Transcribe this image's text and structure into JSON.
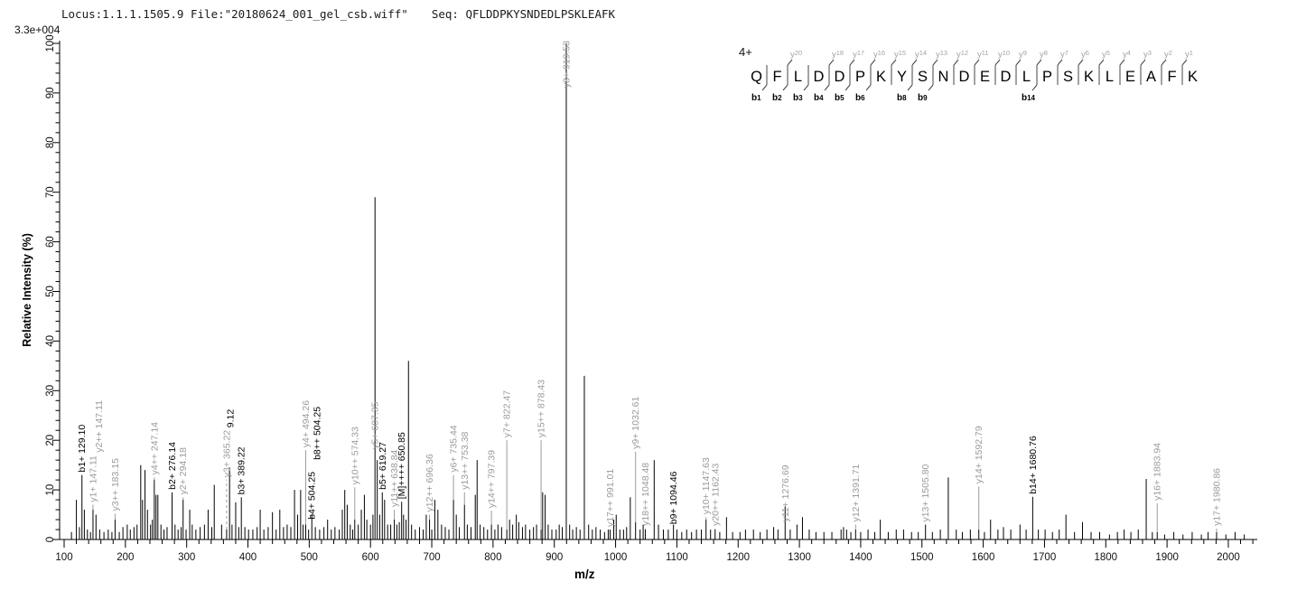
{
  "header": {
    "locus": "Locus:1.1.1.1505.9",
    "file": "File:\"20180624_001_gel_csb.wiff\"",
    "seq": "Seq: QFLDDPKYSNDEDLPSKLEAFK"
  },
  "axes": {
    "y_scale_note": "3.3e+004",
    "ylabel": "Relative  Intensity (%)",
    "xlabel": "m/z",
    "xlim": [
      100,
      2050
    ],
    "ylim": [
      0,
      100
    ],
    "x_major_ticks": [
      100,
      200,
      300,
      400,
      500,
      600,
      700,
      800,
      900,
      1000,
      1100,
      1200,
      1300,
      1400,
      1500,
      1600,
      1700,
      1800,
      1900,
      2000
    ],
    "x_minor_step": 20,
    "y_major_step": 10,
    "y_minor_step": 2
  },
  "peptide": {
    "charge_label": "4+",
    "sequence": "QFLDDPKYSNDEDLPSKLEAFK",
    "boundaries": [
      {
        "i": 1,
        "b": "1"
      },
      {
        "i": 2,
        "y": "20",
        "b": "2"
      },
      {
        "i": 3,
        "b": "3"
      },
      {
        "i": 4,
        "y": "18",
        "b": "4"
      },
      {
        "i": 5,
        "y": "17",
        "b": "5"
      },
      {
        "i": 6,
        "y": "16",
        "b": "6"
      },
      {
        "i": 7,
        "y": "15"
      },
      {
        "i": 8,
        "y": "14",
        "b": "8"
      },
      {
        "i": 9,
        "y": "13",
        "b": "9"
      },
      {
        "i": 10,
        "y": "12"
      },
      {
        "i": 11,
        "y": "11"
      },
      {
        "i": 12,
        "y": "10"
      },
      {
        "i": 13,
        "y": "9"
      },
      {
        "i": 14,
        "y": "8",
        "b": "14"
      },
      {
        "i": 15,
        "y": "7"
      },
      {
        "i": 16,
        "y": "6"
      },
      {
        "i": 17,
        "y": "5"
      },
      {
        "i": 18,
        "y": "4"
      },
      {
        "i": 19,
        "y": "3"
      },
      {
        "i": 20,
        "y": "2"
      },
      {
        "i": 21,
        "y": "1"
      }
    ]
  },
  "colors": {
    "peak": "#000000",
    "b_ion": "#000000",
    "y_ion": "#9b9b9b",
    "diagram_y": "#a3a3a3",
    "axis": "#000000"
  },
  "chart_data": {
    "type": "bar",
    "subtype": "ms2-fragmentation-spectrum",
    "xlabel": "m/z",
    "ylabel": "Relative  Intensity (%)",
    "xlim": [
      100,
      2050
    ],
    "ylim": [
      0,
      100
    ],
    "intensity_scale": "3.3e+004",
    "annotated_peaks": [
      {
        "label": "b1+ 129.10",
        "mz": 129.1,
        "intensity": 12,
        "ion": "b",
        "label_from": 13
      },
      {
        "label": "y1+ 147.11",
        "mz": 147.11,
        "intensity": 6,
        "ion": "y",
        "label_from": 7
      },
      {
        "label": "y2++ 147.11",
        "mz": 156.5,
        "intensity": 0,
        "ion": "y",
        "label_from": 17,
        "float": true
      },
      {
        "label": "y3++ 183.15",
        "mz": 183.15,
        "intensity": 4,
        "ion": "y",
        "label_from": 5.2
      },
      {
        "label": "y4++ 247.14",
        "mz": 247.14,
        "intensity": 12,
        "ion": "y",
        "label_from": 12.5
      },
      {
        "label": "b2+ 276.14",
        "mz": 276.14,
        "intensity": 9,
        "ion": "b",
        "label_from": 9.5
      },
      {
        "label": "y2+ 294.18",
        "mz": 294.18,
        "intensity": 8,
        "ion": "y",
        "label_from": 8.5
      },
      {
        "label": "9.12",
        "mz": 371.5,
        "intensity": 0,
        "ion": "b",
        "label_from": 22,
        "float": true
      },
      {
        "label": "y3+ 365.22",
        "mz": 365.22,
        "intensity": 2,
        "ion": "y",
        "label_from": 12,
        "dashed": true
      },
      {
        "label": "b3+ 389.22",
        "mz": 389.22,
        "intensity": 8,
        "ion": "b",
        "label_from": 8.5
      },
      {
        "label": "y4+ 494.26",
        "mz": 494.26,
        "intensity": 3,
        "ion": "y",
        "label_from": 18
      },
      {
        "label": "b4+ 504.25",
        "mz": 504.25,
        "intensity": 5,
        "ion": "b",
        "label_from": 3.5
      },
      {
        "label": "b8++ 504.25",
        "mz": 513,
        "intensity": 0,
        "ion": "b",
        "label_from": 15.5,
        "float": true
      },
      {
        "label": "y10++ 574.33",
        "mz": 574.33,
        "intensity": 4,
        "ion": "y",
        "label_from": 10.5
      },
      {
        "label": "y5+ 607.35",
        "mz": 607.35,
        "intensity": 69,
        "ion": "y",
        "label_from": 17.7
      },
      {
        "label": "b5+ 619.27",
        "mz": 619.27,
        "intensity": 8,
        "ion": "b",
        "label_from": 9.5
      },
      {
        "label": "y11++ 638.84",
        "mz": 638.84,
        "intensity": 4,
        "ion": "y",
        "label_from": 6
      },
      {
        "label": "[M]++++ 650.85",
        "mz": 650.85,
        "intensity": 6,
        "ion": "b",
        "label_from": 7.6
      },
      {
        "label": "y12++ 696.36",
        "mz": 696.36,
        "intensity": 4,
        "ion": "y",
        "label_from": 5
      },
      {
        "label": "y6+ 735.44",
        "mz": 735.44,
        "intensity": 8,
        "ion": "y",
        "label_from": 13
      },
      {
        "label": "y13++ 753.38",
        "mz": 753.38,
        "intensity": 7,
        "ion": "y",
        "label_from": 9.5
      },
      {
        "label": "y14++ 797.39",
        "mz": 797.39,
        "intensity": 3,
        "ion": "y",
        "label_from": 5.8
      },
      {
        "label": "y7+ 822.47",
        "mz": 822.47,
        "intensity": 2,
        "ion": "y",
        "label_from": 20
      },
      {
        "label": "y15++ 878.43",
        "mz": 878.43,
        "intensity": 2,
        "ion": "y",
        "label_from": 20
      },
      {
        "label": "y8+ 919.53",
        "mz": 919.53,
        "intensity": 100,
        "ion": "y",
        "label_from": 90.5
      },
      {
        "label": "y17++ 991.01",
        "mz": 991.01,
        "intensity": 2,
        "ion": "y",
        "label_from": 2
      },
      {
        "label": "y9+ 1032.61",
        "mz": 1032.61,
        "intensity": 3.5,
        "ion": "y",
        "label_from": 17.7
      },
      {
        "label": "y18++ 1048.48",
        "mz": 1048.48,
        "intensity": 2,
        "ion": "y",
        "label_from": 2.2
      },
      {
        "label": "b9+ 1094.46",
        "mz": 1094.46,
        "intensity": 3,
        "ion": "b",
        "label_from": 2.5
      },
      {
        "label": "y10+ 1147.63",
        "mz": 1147.63,
        "intensity": 4,
        "ion": "y",
        "label_from": 4.5
      },
      {
        "label": "y20++ 1162.43",
        "mz": 1162.43,
        "intensity": 2,
        "ion": "y",
        "label_from": 2.2
      },
      {
        "label": "y11+ 1276.69",
        "mz": 1276.69,
        "intensity": 6.7,
        "ion": "y",
        "label_from": 3
      },
      {
        "label": "y12+ 1391.71",
        "mz": 1391.71,
        "intensity": 2,
        "ion": "y",
        "label_from": 3
      },
      {
        "label": "y13+ 1505.80",
        "mz": 1505.8,
        "intensity": 3,
        "ion": "y",
        "label_from": 3
      },
      {
        "label": "y14+ 1592.79",
        "mz": 1592.79,
        "intensity": 2,
        "ion": "y",
        "label_from": 10.7
      },
      {
        "label": "b14+ 1680.76",
        "mz": 1680.76,
        "intensity": 8,
        "ion": "b",
        "label_from": 8.6
      },
      {
        "label": "y16+ 1883.94",
        "mz": 1883.94,
        "intensity": 1.5,
        "ion": "y",
        "label_from": 7.3
      },
      {
        "label": "y17+ 1980.86",
        "mz": 1980.86,
        "intensity": 1.5,
        "ion": "y",
        "label_from": 2.2
      }
    ],
    "background_peaks": [
      [
        112,
        1.5
      ],
      [
        120,
        8
      ],
      [
        125,
        2.5
      ],
      [
        133,
        6
      ],
      [
        138,
        2
      ],
      [
        143,
        1.5
      ],
      [
        152,
        5
      ],
      [
        158,
        2
      ],
      [
        165,
        1.5
      ],
      [
        172,
        2
      ],
      [
        178,
        1.5
      ],
      [
        190,
        1.5
      ],
      [
        196,
        2.5
      ],
      [
        203,
        3
      ],
      [
        208,
        2
      ],
      [
        214,
        2.5
      ],
      [
        219,
        3
      ],
      [
        225,
        15
      ],
      [
        228,
        8
      ],
      [
        232,
        14
      ],
      [
        236,
        6
      ],
      [
        241,
        3
      ],
      [
        244,
        4
      ],
      [
        250,
        9
      ],
      [
        253,
        9
      ],
      [
        258,
        3
      ],
      [
        263,
        2
      ],
      [
        268,
        2.5
      ],
      [
        281,
        3
      ],
      [
        286,
        2
      ],
      [
        291,
        2.5
      ],
      [
        299,
        2
      ],
      [
        305,
        6
      ],
      [
        309,
        3
      ],
      [
        315,
        2
      ],
      [
        322,
        2.5
      ],
      [
        329,
        3
      ],
      [
        335,
        6
      ],
      [
        341,
        2.5
      ],
      [
        345,
        11
      ],
      [
        357,
        3
      ],
      [
        370,
        14.5
      ],
      [
        374,
        3
      ],
      [
        380,
        7.5
      ],
      [
        385,
        2.5
      ],
      [
        395,
        2.5
      ],
      [
        401,
        2
      ],
      [
        408,
        2
      ],
      [
        415,
        2.5
      ],
      [
        420,
        6
      ],
      [
        426,
        2
      ],
      [
        433,
        2.5
      ],
      [
        440,
        5.5
      ],
      [
        446,
        2
      ],
      [
        452,
        6
      ],
      [
        458,
        2.5
      ],
      [
        464,
        3
      ],
      [
        470,
        2.5
      ],
      [
        476,
        10
      ],
      [
        481,
        5
      ],
      [
        486,
        10
      ],
      [
        490,
        3
      ],
      [
        499,
        2
      ],
      [
        510,
        2.5
      ],
      [
        517,
        2
      ],
      [
        524,
        2.5
      ],
      [
        530,
        4
      ],
      [
        536,
        2
      ],
      [
        542,
        2.5
      ],
      [
        549,
        2
      ],
      [
        554,
        6
      ],
      [
        558,
        10
      ],
      [
        562,
        7
      ],
      [
        567,
        3
      ],
      [
        571,
        2
      ],
      [
        580,
        3
      ],
      [
        585,
        6
      ],
      [
        590,
        9
      ],
      [
        594,
        4
      ],
      [
        600,
        3
      ],
      [
        604,
        5
      ],
      [
        611,
        16
      ],
      [
        615,
        5
      ],
      [
        623,
        8
      ],
      [
        628,
        3
      ],
      [
        633,
        3
      ],
      [
        643,
        3
      ],
      [
        647,
        3.5
      ],
      [
        654,
        5
      ],
      [
        658,
        4
      ],
      [
        662,
        36
      ],
      [
        667,
        3
      ],
      [
        673,
        2
      ],
      [
        680,
        2.5
      ],
      [
        686,
        2
      ],
      [
        691,
        5
      ],
      [
        700,
        2
      ],
      [
        705,
        8
      ],
      [
        710,
        6
      ],
      [
        716,
        3
      ],
      [
        722,
        2.5
      ],
      [
        728,
        2
      ],
      [
        740,
        5
      ],
      [
        745,
        2.5
      ],
      [
        758,
        3
      ],
      [
        764,
        2.5
      ],
      [
        771,
        9
      ],
      [
        774,
        16
      ],
      [
        779,
        3
      ],
      [
        785,
        2.5
      ],
      [
        791,
        2
      ],
      [
        803,
        2
      ],
      [
        808,
        3
      ],
      [
        814,
        2.5
      ],
      [
        827,
        4
      ],
      [
        832,
        3
      ],
      [
        838,
        5
      ],
      [
        842,
        3.5
      ],
      [
        848,
        2.5
      ],
      [
        853,
        3
      ],
      [
        860,
        2
      ],
      [
        866,
        2.5
      ],
      [
        871,
        3
      ],
      [
        881,
        9.5
      ],
      [
        885,
        9
      ],
      [
        890,
        3
      ],
      [
        896,
        2
      ],
      [
        903,
        2
      ],
      [
        908,
        3
      ],
      [
        913,
        2.5
      ],
      [
        925,
        3
      ],
      [
        930,
        2
      ],
      [
        936,
        2.5
      ],
      [
        942,
        2
      ],
      [
        949,
        33
      ],
      [
        956,
        3
      ],
      [
        962,
        2
      ],
      [
        968,
        2.5
      ],
      [
        975,
        2
      ],
      [
        982,
        1.5
      ],
      [
        988,
        2
      ],
      [
        997,
        4
      ],
      [
        1001,
        5
      ],
      [
        1007,
        2
      ],
      [
        1013,
        2
      ],
      [
        1018,
        2.5
      ],
      [
        1024,
        8.5
      ],
      [
        1040,
        2
      ],
      [
        1045,
        3
      ],
      [
        1063,
        16
      ],
      [
        1070,
        3
      ],
      [
        1078,
        2
      ],
      [
        1086,
        2
      ],
      [
        1100,
        2
      ],
      [
        1108,
        1.5
      ],
      [
        1116,
        2
      ],
      [
        1124,
        1.5
      ],
      [
        1132,
        2
      ],
      [
        1140,
        2
      ],
      [
        1155,
        2
      ],
      [
        1170,
        1.5
      ],
      [
        1181,
        4.5
      ],
      [
        1191,
        1.5
      ],
      [
        1203,
        1.5
      ],
      [
        1212,
        2
      ],
      [
        1225,
        2
      ],
      [
        1236,
        1.5
      ],
      [
        1247,
        2
      ],
      [
        1258,
        2.5
      ],
      [
        1265,
        2
      ],
      [
        1285,
        2
      ],
      [
        1296,
        3
      ],
      [
        1305,
        4.5
      ],
      [
        1316,
        2
      ],
      [
        1327,
        1.5
      ],
      [
        1340,
        1.5
      ],
      [
        1353,
        1.5
      ],
      [
        1368,
        2
      ],
      [
        1372,
        2.5
      ],
      [
        1377,
        2
      ],
      [
        1384,
        1.5
      ],
      [
        1400,
        1.5
      ],
      [
        1412,
        2
      ],
      [
        1423,
        1.5
      ],
      [
        1432,
        4
      ],
      [
        1445,
        1.5
      ],
      [
        1458,
        2
      ],
      [
        1470,
        2
      ],
      [
        1483,
        1.5
      ],
      [
        1494,
        1.5
      ],
      [
        1517,
        1.5
      ],
      [
        1530,
        2
      ],
      [
        1543,
        12.5
      ],
      [
        1556,
        2
      ],
      [
        1566,
        1.5
      ],
      [
        1579,
        2
      ],
      [
        1602,
        1.5
      ],
      [
        1612,
        4
      ],
      [
        1624,
        2
      ],
      [
        1633,
        2.5
      ],
      [
        1645,
        2
      ],
      [
        1660,
        3
      ],
      [
        1670,
        2
      ],
      [
        1690,
        2
      ],
      [
        1701,
        2
      ],
      [
        1713,
        1.5
      ],
      [
        1724,
        2
      ],
      [
        1735,
        5
      ],
      [
        1749,
        1.5
      ],
      [
        1762,
        3.5
      ],
      [
        1776,
        1.5
      ],
      [
        1790,
        1.5
      ],
      [
        1806,
        1
      ],
      [
        1819,
        1.5
      ],
      [
        1830,
        2
      ],
      [
        1841,
        1.5
      ],
      [
        1853,
        2
      ],
      [
        1866,
        12.2
      ],
      [
        1876,
        1.5
      ],
      [
        1896,
        1
      ],
      [
        1911,
        1.5
      ],
      [
        1926,
        1
      ],
      [
        1941,
        1.5
      ],
      [
        1956,
        1
      ],
      [
        1967,
        1.5
      ],
      [
        1996,
        1
      ],
      [
        2011,
        1.5
      ],
      [
        2026,
        1
      ]
    ]
  }
}
